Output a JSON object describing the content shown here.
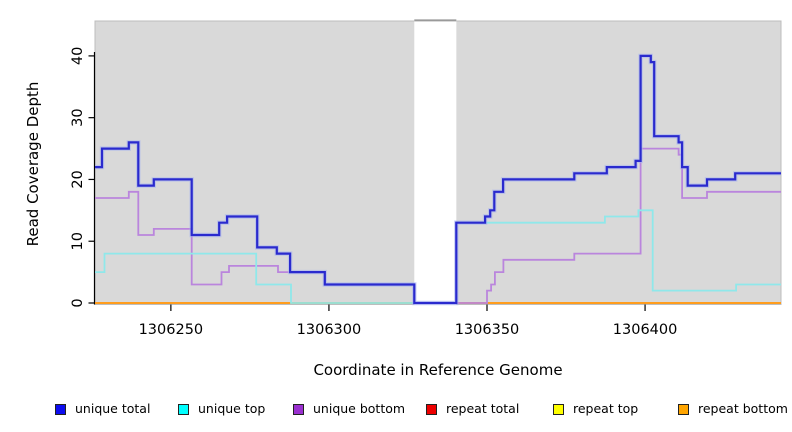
{
  "chart_data": {
    "type": "line",
    "subtype": "step-after-coverage-plot",
    "title": "",
    "xlabel": "Coordinate in Reference Genome",
    "ylabel": "Read Coverage Depth",
    "xlim": [
      1306226,
      1306443
    ],
    "ylim": [
      0,
      45.6
    ],
    "x_ticks": [
      1306250,
      1306300,
      1306350,
      1306400
    ],
    "y_ticks": [
      0,
      10,
      20,
      30,
      40
    ],
    "grid": false,
    "legend_position": "bottom",
    "panel_background": "#d9d9d9",
    "panel_border": "#bdbdbd",
    "gap_region": {
      "x_start": 1306327,
      "x_end": 1306340.3,
      "fill": "#ffffff",
      "top_remnant_color": "#9a9a9a"
    },
    "series": [
      {
        "id": "unique-total",
        "name": "unique total",
        "line_color": "#2a2ace",
        "halo_color": "#a9b4f0",
        "width": 2.2,
        "halo": true,
        "points": [
          [
            1306226,
            22
          ],
          [
            1306228.2,
            25
          ],
          [
            1306236.7,
            26
          ],
          [
            1306239.7,
            19
          ],
          [
            1306244.6,
            20
          ],
          [
            1306256.6,
            11
          ],
          [
            1306265.3,
            13
          ],
          [
            1306267.8,
            14
          ],
          [
            1306277.3,
            9
          ],
          [
            1306283.5,
            8
          ],
          [
            1306287.7,
            5
          ],
          [
            1306298.7,
            3
          ],
          [
            1306327,
            0
          ],
          [
            1306340.3,
            13
          ],
          [
            1306349.4,
            14
          ],
          [
            1306351,
            15
          ],
          [
            1306352.3,
            18
          ],
          [
            1306355.1,
            20
          ],
          [
            1306377.6,
            21
          ],
          [
            1306387.9,
            22
          ],
          [
            1306397,
            23
          ],
          [
            1306398.6,
            40
          ],
          [
            1306401.8,
            39
          ],
          [
            1306402.9,
            27
          ],
          [
            1306410.6,
            26
          ],
          [
            1306411.7,
            22
          ],
          [
            1306413.5,
            19
          ],
          [
            1306419.6,
            20
          ],
          [
            1306428.5,
            21
          ],
          [
            1306443,
            21
          ]
        ]
      },
      {
        "id": "unique-top",
        "name": "unique top",
        "line_color": "#8fe8ea",
        "width": 1.8,
        "halo": false,
        "points": [
          [
            1306226,
            5
          ],
          [
            1306229,
            8
          ],
          [
            1306277,
            3
          ],
          [
            1306288,
            0
          ],
          [
            1306340.3,
            13
          ],
          [
            1306387.3,
            14
          ],
          [
            1306397.9,
            15
          ],
          [
            1306402.4,
            2
          ],
          [
            1306428.8,
            3
          ],
          [
            1306443,
            3
          ]
        ]
      },
      {
        "id": "unique-bottom",
        "name": "unique bottom",
        "line_color": "#ba85dd",
        "width": 1.8,
        "halo": false,
        "points": [
          [
            1306226,
            17
          ],
          [
            1306236.7,
            18
          ],
          [
            1306239.7,
            11
          ],
          [
            1306244.6,
            12
          ],
          [
            1306256.6,
            3
          ],
          [
            1306266,
            5
          ],
          [
            1306268.4,
            6
          ],
          [
            1306283.9,
            5
          ],
          [
            1306298.7,
            3
          ],
          [
            1306327,
            0
          ],
          [
            1306350,
            2
          ],
          [
            1306351.3,
            3
          ],
          [
            1306352.5,
            5
          ],
          [
            1306355.2,
            7
          ],
          [
            1306377.6,
            8
          ],
          [
            1306398.6,
            25
          ],
          [
            1306410.6,
            24
          ],
          [
            1306411.7,
            17
          ],
          [
            1306419.6,
            18
          ],
          [
            1306443,
            18
          ]
        ]
      },
      {
        "id": "repeat-total",
        "name": "repeat total",
        "line_color": "#c62d48",
        "width": 1.8,
        "halo": false,
        "points": [
          [
            1306226,
            0
          ],
          [
            1306443,
            0
          ]
        ]
      },
      {
        "id": "repeat-top",
        "name": "repeat top",
        "line_color": "#ffe800",
        "width": 1.8,
        "halo": false,
        "points": [
          [
            1306226,
            0
          ],
          [
            1306443,
            0
          ]
        ]
      },
      {
        "id": "repeat-bottom",
        "name": "repeat bottom",
        "line_color": "#ff9d1e",
        "width": 2,
        "halo": false,
        "points": [
          [
            1306226,
            0
          ],
          [
            1306443,
            0
          ]
        ]
      }
    ],
    "draw_order": [
      "repeat-top",
      "repeat-total",
      "repeat-bottom",
      "unique-bottom",
      "unique-top",
      "unique-total"
    ]
  },
  "legend": {
    "items": [
      {
        "label": "unique total",
        "swatch_color": "#0d0df0"
      },
      {
        "label": "unique top",
        "swatch_color": "#00ffff"
      },
      {
        "label": "unique bottom",
        "swatch_color": "#9a30d0"
      },
      {
        "label": "repeat total",
        "swatch_color": "#ee0000"
      },
      {
        "label": "repeat top",
        "swatch_color": "#ffff00"
      },
      {
        "label": "repeat bottom",
        "swatch_color": "#ffa500"
      }
    ]
  }
}
